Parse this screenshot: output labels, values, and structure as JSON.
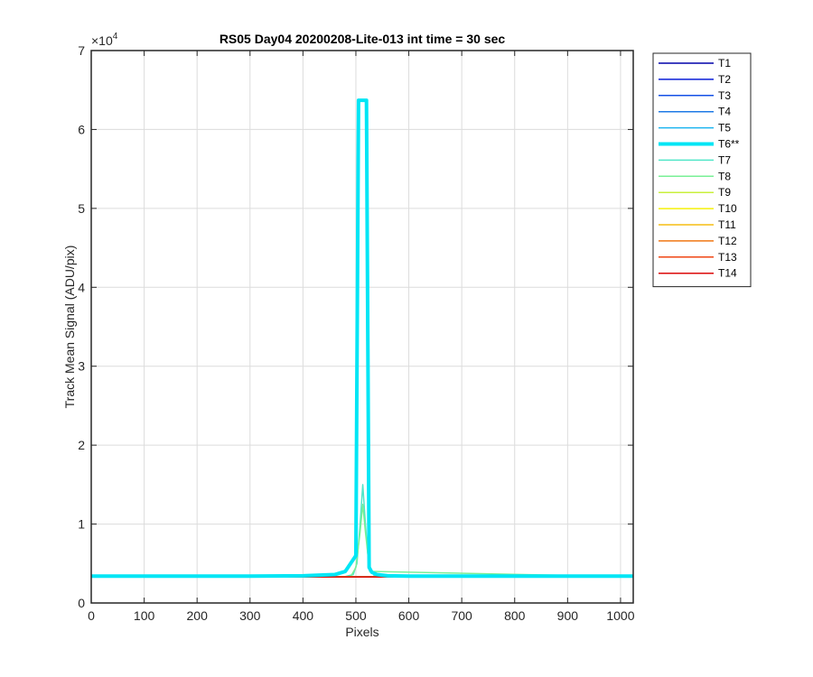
{
  "chart_data": {
    "type": "line",
    "title": "RS05 Day04 20200208-Lite-013 int time = 30 sec",
    "xlabel": "Pixels",
    "ylabel": "Track Mean Signal (ADU/pix)",
    "xlim": [
      0,
      1024
    ],
    "ylim": [
      0,
      70000
    ],
    "x_ticks": [
      0,
      100,
      200,
      300,
      400,
      500,
      600,
      700,
      800,
      900,
      1000
    ],
    "x_tick_labels": [
      "0",
      "100",
      "200",
      "300",
      "400",
      "500",
      "600",
      "700",
      "800",
      "900",
      "1000"
    ],
    "y_ticks": [
      0,
      10000,
      20000,
      30000,
      40000,
      50000,
      60000,
      70000
    ],
    "y_tick_labels": [
      "0",
      "1",
      "2",
      "3",
      "4",
      "5",
      "6",
      "7"
    ],
    "y_exponent_label": "×10",
    "y_exponent_power": "4",
    "grid": true,
    "legend_position": "outside-right",
    "series": [
      {
        "name": "T1",
        "color": "#0000aa",
        "width": 1.5,
        "x": [
          0,
          1024
        ],
        "y": [
          3300,
          3300
        ]
      },
      {
        "name": "T2",
        "color": "#0a1ed8",
        "width": 1.5,
        "x": [
          0,
          1024
        ],
        "y": [
          3300,
          3300
        ]
      },
      {
        "name": "T3",
        "color": "#1450e6",
        "width": 1.5,
        "x": [
          0,
          1024
        ],
        "y": [
          3300,
          3300
        ]
      },
      {
        "name": "T4",
        "color": "#1e7ae6",
        "width": 1.5,
        "x": [
          0,
          1024
        ],
        "y": [
          3300,
          3300
        ]
      },
      {
        "name": "T5",
        "color": "#1eb4f0",
        "width": 1.5,
        "x": [
          0,
          1024
        ],
        "y": [
          3350,
          3350
        ]
      },
      {
        "name": "T6**",
        "color": "#00e6f5",
        "width": 4,
        "x": [
          0,
          300,
          400,
          460,
          480,
          490,
          500,
          505,
          520,
          525,
          530,
          540,
          560,
          600,
          700,
          1024
        ],
        "y": [
          3400,
          3400,
          3450,
          3600,
          4000,
          5000,
          6000,
          63700,
          63700,
          4500,
          3900,
          3600,
          3450,
          3400,
          3400,
          3400
        ]
      },
      {
        "name": "T7",
        "color": "#50e6c8",
        "width": 1.5,
        "x": [
          0,
          480,
          495,
          502,
          508,
          513,
          518,
          524,
          535,
          1024
        ],
        "y": [
          3350,
          3350,
          3600,
          5000,
          10000,
          15000,
          10000,
          5000,
          3400,
          3350
        ]
      },
      {
        "name": "T8",
        "color": "#78f096",
        "width": 1.5,
        "x": [
          0,
          490,
          500,
          508,
          513,
          518,
          526,
          1024
        ],
        "y": [
          3320,
          3320,
          4500,
          9000,
          12500,
          9000,
          4000,
          3320
        ]
      },
      {
        "name": "T9",
        "color": "#c8f03c",
        "width": 1.5,
        "x": [
          0,
          1024
        ],
        "y": [
          3300,
          3300
        ]
      },
      {
        "name": "T10",
        "color": "#f5f00a",
        "width": 1.5,
        "x": [
          0,
          1024
        ],
        "y": [
          3300,
          3300
        ]
      },
      {
        "name": "T11",
        "color": "#f5be14",
        "width": 1.5,
        "x": [
          0,
          1024
        ],
        "y": [
          3300,
          3300
        ]
      },
      {
        "name": "T12",
        "color": "#f07814",
        "width": 1.5,
        "x": [
          0,
          1024
        ],
        "y": [
          3300,
          3300
        ]
      },
      {
        "name": "T13",
        "color": "#f04614",
        "width": 1.5,
        "x": [
          0,
          1024
        ],
        "y": [
          3300,
          3300
        ]
      },
      {
        "name": "T14",
        "color": "#dc0a0a",
        "width": 1.5,
        "x": [
          0,
          1024
        ],
        "y": [
          3300,
          3300
        ]
      }
    ]
  }
}
